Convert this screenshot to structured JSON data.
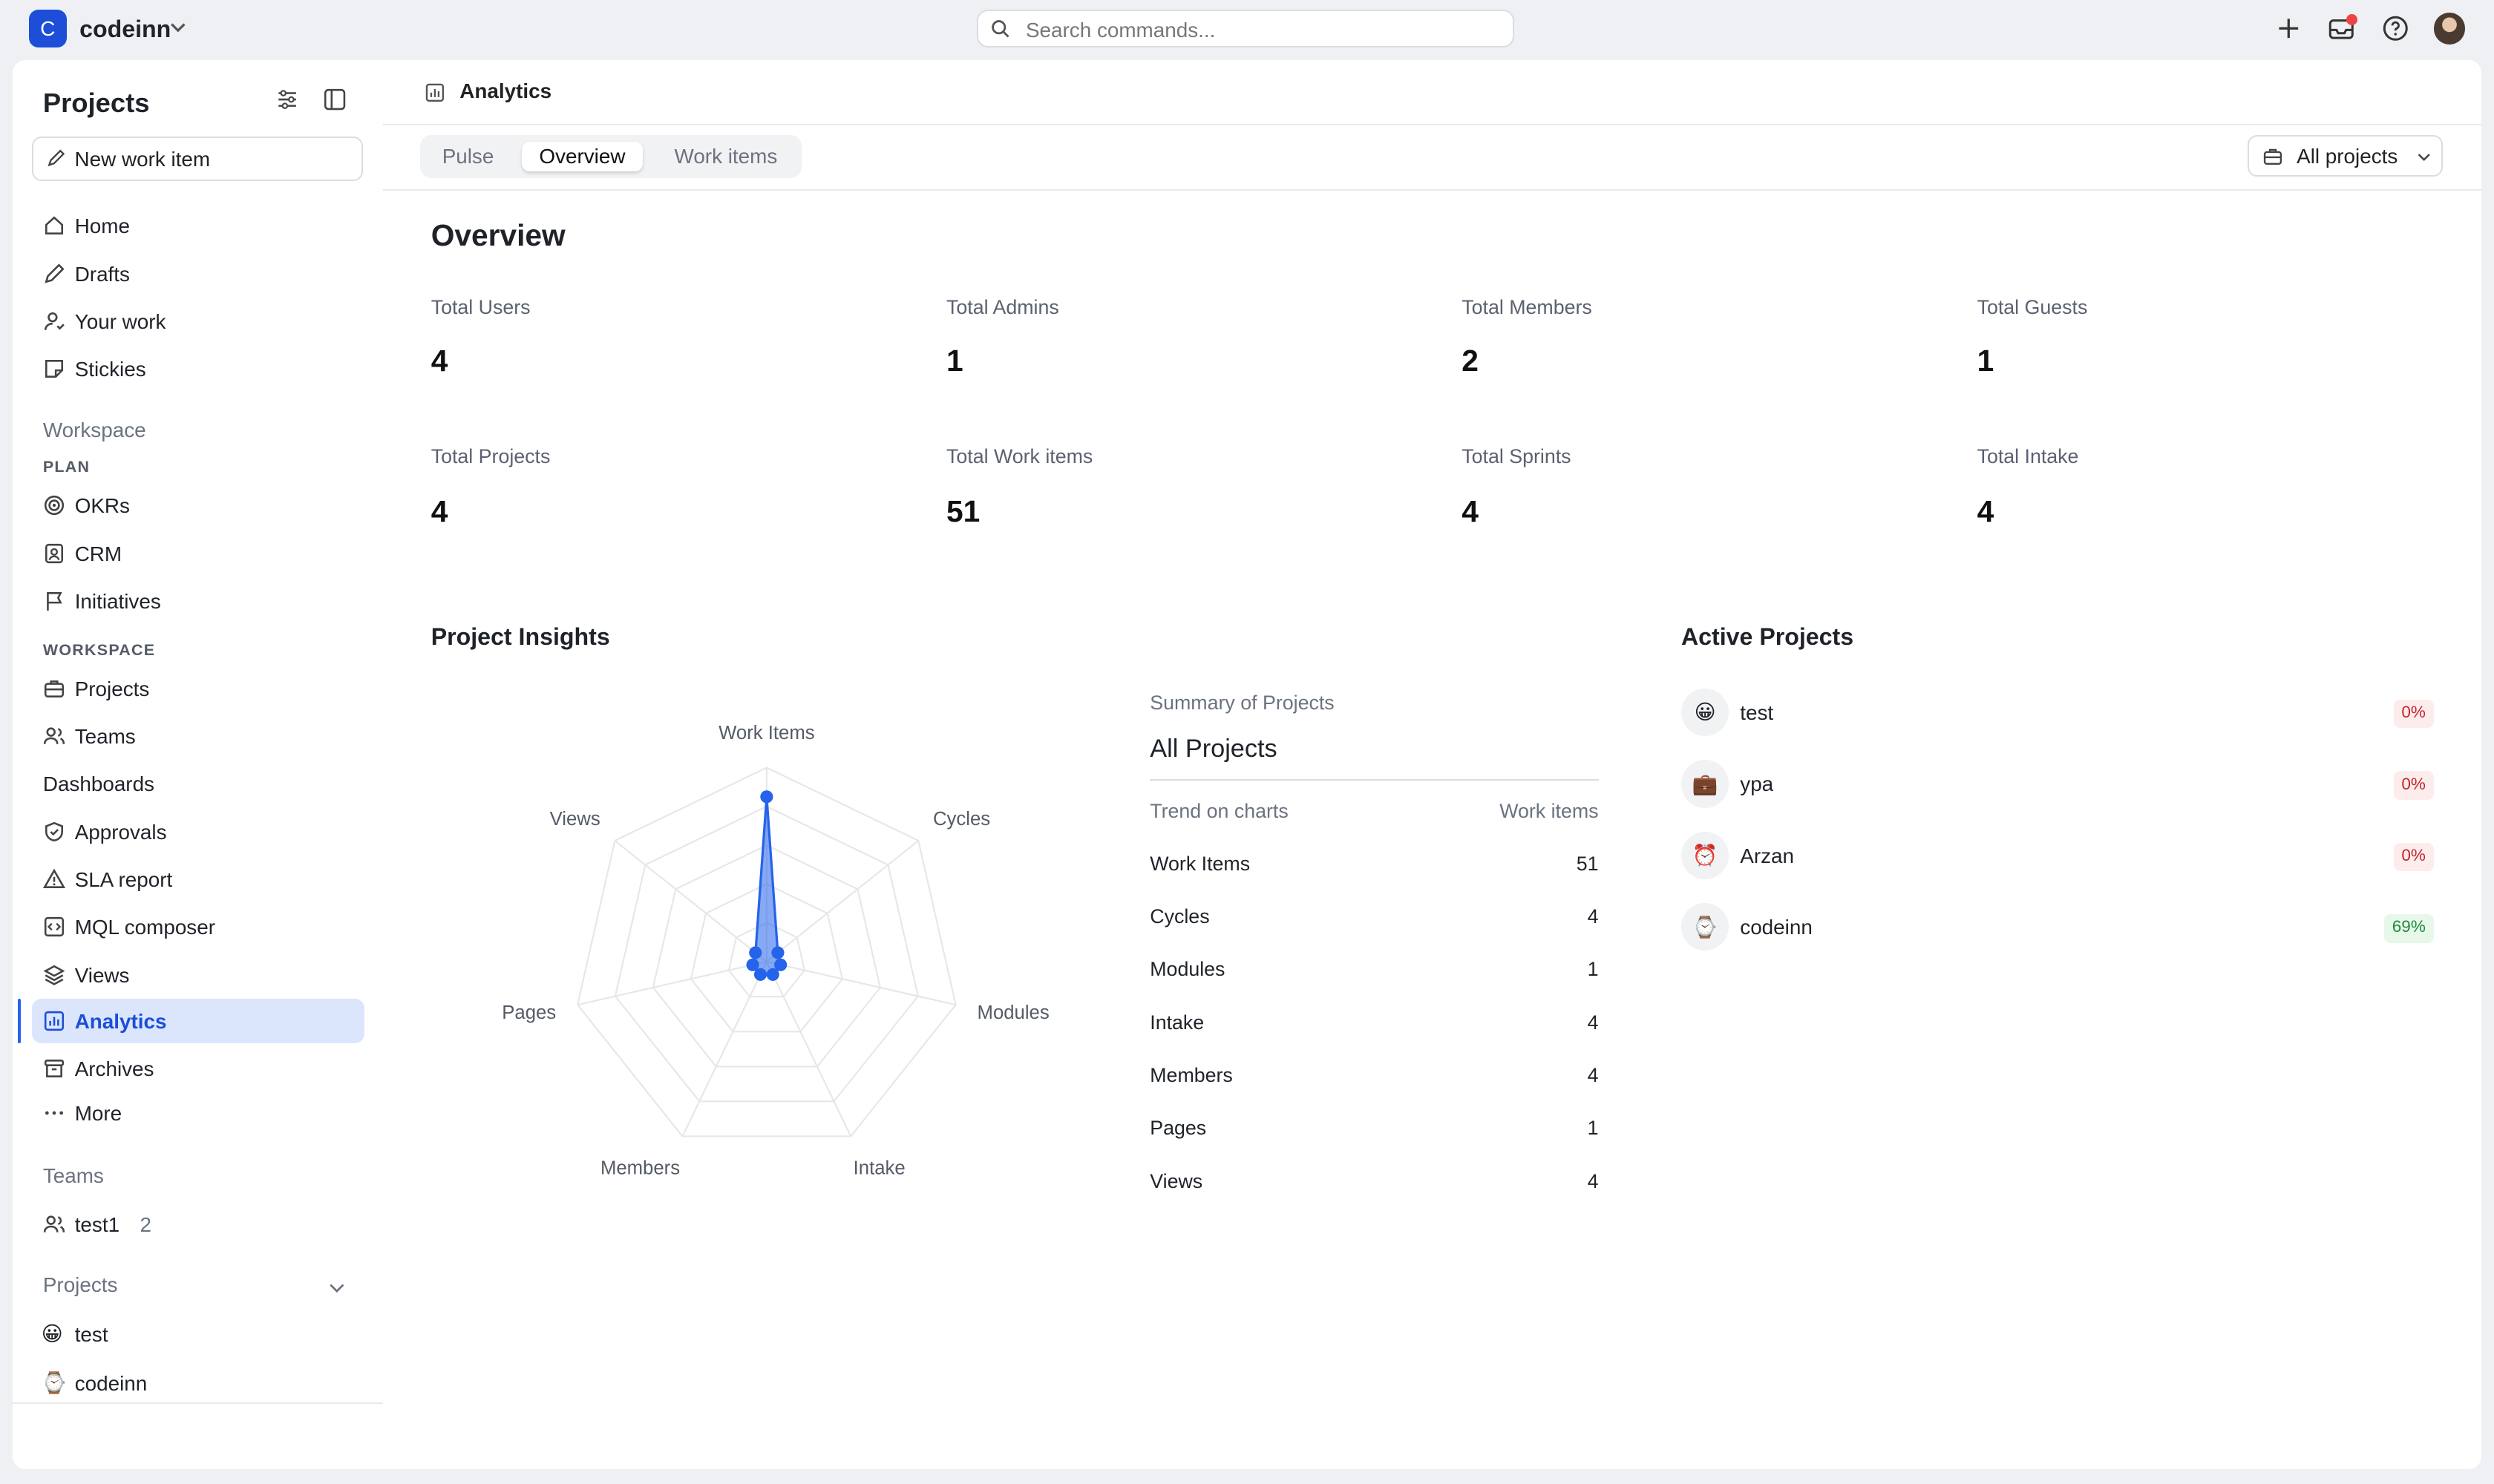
{
  "topbar": {
    "workspace_initial": "C",
    "workspace_name": "codeinn",
    "search_placeholder": "Search commands..."
  },
  "sidebar": {
    "title": "Projects",
    "new_item_label": "New work item",
    "main_nav": [
      {
        "label": "Home",
        "icon": "home-icon"
      },
      {
        "label": "Drafts",
        "icon": "pencil-icon"
      },
      {
        "label": "Your work",
        "icon": "user-icon"
      },
      {
        "label": "Stickies",
        "icon": "sticky-note-icon"
      }
    ],
    "workspace_heading": "Workspace",
    "plan_heading": "PLAN",
    "plan_items": [
      {
        "label": "OKRs",
        "icon": "target-icon"
      },
      {
        "label": "CRM",
        "icon": "contact-icon"
      },
      {
        "label": "Initiatives",
        "icon": "flag-icon"
      }
    ],
    "workspace_sub_heading": "WORKSPACE",
    "workspace_items": [
      {
        "label": "Projects",
        "icon": "briefcase-icon"
      },
      {
        "label": "Teams",
        "icon": "users-icon"
      },
      {
        "label": "Dashboards",
        "icon": ""
      },
      {
        "label": "Approvals",
        "icon": "shield-icon"
      },
      {
        "label": "SLA report",
        "icon": "warning-icon"
      },
      {
        "label": "MQL composer",
        "icon": "code-icon"
      },
      {
        "label": "Views",
        "icon": "layers-icon"
      },
      {
        "label": "Analytics",
        "icon": "chart-icon",
        "active": true
      },
      {
        "label": "Archives",
        "icon": "archive-icon"
      }
    ],
    "more_label": "More",
    "teams_heading": "Teams",
    "team_name": "test1",
    "team_count": "2",
    "projects_heading": "Projects",
    "projects": [
      {
        "emoji": "😀",
        "label": "test"
      },
      {
        "emoji": "⌚",
        "label": "codeinn"
      }
    ]
  },
  "main": {
    "breadcrumb": "Analytics",
    "tabs": [
      "Pulse",
      "Overview",
      "Work items"
    ],
    "active_tab": "Overview",
    "project_filter": "All projects",
    "overview_title": "Overview",
    "stats": [
      {
        "label": "Total Users",
        "value": "4"
      },
      {
        "label": "Total Admins",
        "value": "1"
      },
      {
        "label": "Total Members",
        "value": "2"
      },
      {
        "label": "Total Guests",
        "value": "1"
      },
      {
        "label": "Total Projects",
        "value": "4"
      },
      {
        "label": "Total Work items",
        "value": "51"
      },
      {
        "label": "Total Sprints",
        "value": "4"
      },
      {
        "label": "Total Intake",
        "value": "4"
      }
    ],
    "insights_title": "Project Insights",
    "summary_heading": "Summary of Projects",
    "summary_title": "All Projects",
    "summary_col_left": "Trend on charts",
    "summary_col_right": "Work items",
    "active_projects_title": "Active Projects",
    "active_projects": [
      {
        "emoji": "😀",
        "name": "test",
        "progress": "0%",
        "status": "red"
      },
      {
        "emoji": "💼",
        "name": "ypa",
        "progress": "0%",
        "status": "red"
      },
      {
        "emoji": "⏰",
        "name": "Arzan",
        "progress": "0%",
        "status": "red"
      },
      {
        "emoji": "⌚",
        "name": "codeinn",
        "progress": "69%",
        "status": "green"
      }
    ]
  },
  "chart_data": {
    "type": "radar",
    "categories": [
      "Work Items",
      "Cycles",
      "Modules",
      "Intake",
      "Members",
      "Pages",
      "Views"
    ],
    "values": [
      51,
      4,
      1,
      4,
      4,
      1,
      4
    ],
    "rmax": 60,
    "color": "#2563eb"
  }
}
